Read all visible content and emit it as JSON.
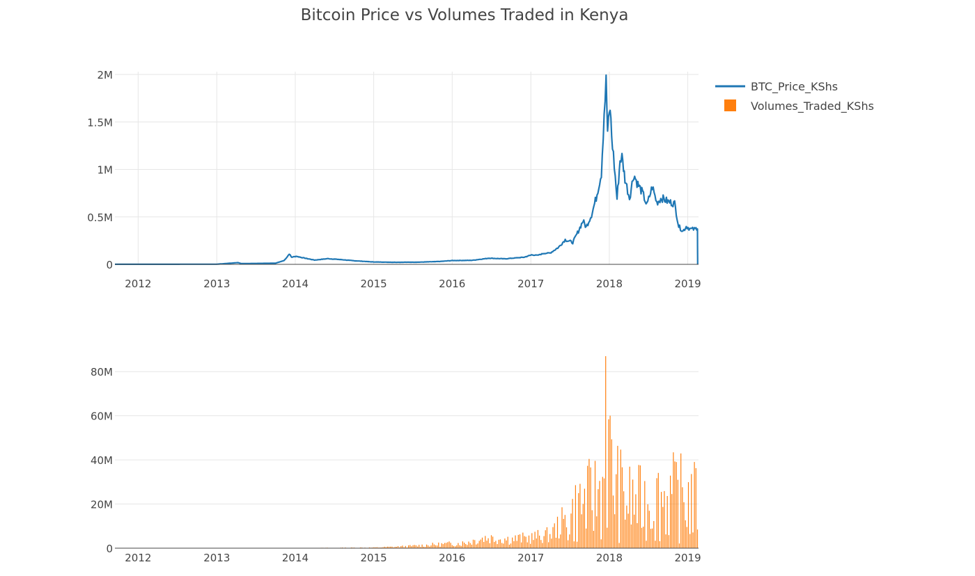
{
  "title": "Bitcoin Price vs Volumes Traded in Kenya",
  "legend": {
    "placement": "top-right",
    "items": [
      {
        "name": "BTC_Price_KShs",
        "symbol": "line",
        "color": "#1f77b4"
      },
      {
        "name": "Volumes_Traded_KShs",
        "symbol": "square",
        "color": "#ff7f0e"
      }
    ]
  },
  "chart_data": [
    {
      "type": "line",
      "title": "",
      "xlabel": "",
      "ylabel": "",
      "x_ticks": [
        "2012",
        "2013",
        "2014",
        "2015",
        "2016",
        "2017",
        "2018",
        "2019"
      ],
      "y_ticks": [
        "0",
        "0.5M",
        "1M",
        "1.5M",
        "2M"
      ],
      "xlim": [
        "2011-09-15",
        "2019-02-20"
      ],
      "ylim": [
        0,
        2000000
      ],
      "grid": true,
      "series": [
        {
          "name": "BTC_Price_KShs",
          "color": "#1f77b4",
          "points": [
            [
              "2011-09-15",
              500
            ],
            [
              "2012-06-01",
              1000
            ],
            [
              "2013-01-01",
              1500
            ],
            [
              "2013-04-10",
              18000
            ],
            [
              "2013-04-25",
              8000
            ],
            [
              "2013-06-01",
              9000
            ],
            [
              "2013-10-01",
              12000
            ],
            [
              "2013-11-10",
              40000
            ],
            [
              "2013-11-25",
              80000
            ],
            [
              "2013-12-04",
              110000
            ],
            [
              "2013-12-15",
              75000
            ],
            [
              "2014-01-05",
              85000
            ],
            [
              "2014-02-15",
              65000
            ],
            [
              "2014-04-01",
              45000
            ],
            [
              "2014-06-01",
              60000
            ],
            [
              "2014-08-01",
              50000
            ],
            [
              "2014-10-01",
              38000
            ],
            [
              "2015-01-01",
              25000
            ],
            [
              "2015-04-01",
              22000
            ],
            [
              "2015-08-01",
              23000
            ],
            [
              "2015-11-01",
              30000
            ],
            [
              "2016-01-01",
              40000
            ],
            [
              "2016-04-01",
              42000
            ],
            [
              "2016-06-20",
              65000
            ],
            [
              "2016-09-01",
              58000
            ],
            [
              "2016-12-01",
              75000
            ],
            [
              "2017-01-05",
              100000
            ],
            [
              "2017-02-01",
              95000
            ],
            [
              "2017-03-01",
              115000
            ],
            [
              "2017-04-01",
              120000
            ],
            [
              "2017-05-10",
              180000
            ],
            [
              "2017-06-10",
              260000
            ],
            [
              "2017-07-15",
              230000
            ],
            [
              "2017-08-10",
              350000
            ],
            [
              "2017-09-01",
              460000
            ],
            [
              "2017-09-15",
              390000
            ],
            [
              "2017-10-10",
              520000
            ],
            [
              "2017-11-01",
              700000
            ],
            [
              "2017-11-25",
              960000
            ],
            [
              "2017-12-08",
              1600000
            ],
            [
              "2017-12-17",
              1920000
            ],
            [
              "2017-12-24",
              1400000
            ],
            [
              "2018-01-05",
              1650000
            ],
            [
              "2018-01-12",
              1350000
            ],
            [
              "2018-01-20",
              1150000
            ],
            [
              "2018-02-06",
              690000
            ],
            [
              "2018-02-20",
              1100000
            ],
            [
              "2018-03-01",
              1130000
            ],
            [
              "2018-03-15",
              900000
            ],
            [
              "2018-04-05",
              700000
            ],
            [
              "2018-04-25",
              950000
            ],
            [
              "2018-05-10",
              860000
            ],
            [
              "2018-06-05",
              750000
            ],
            [
              "2018-06-25",
              620000
            ],
            [
              "2018-07-20",
              820000
            ],
            [
              "2018-08-10",
              650000
            ],
            [
              "2018-09-01",
              700000
            ],
            [
              "2018-10-01",
              660000
            ],
            [
              "2018-11-01",
              640000
            ],
            [
              "2018-11-20",
              400000
            ],
            [
              "2018-12-10",
              350000
            ],
            [
              "2018-12-25",
              400000
            ],
            [
              "2019-01-15",
              370000
            ],
            [
              "2019-02-05",
              370000
            ],
            [
              "2019-02-15",
              390000
            ],
            [
              "2019-02-16",
              0
            ]
          ]
        }
      ]
    },
    {
      "type": "bar",
      "title": "",
      "xlabel": "",
      "ylabel": "",
      "x_ticks": [
        "2012",
        "2013",
        "2014",
        "2015",
        "2016",
        "2017",
        "2018",
        "2019"
      ],
      "y_ticks": [
        "0",
        "20M",
        "40M",
        "60M",
        "80M"
      ],
      "xlim": [
        "2011-09-15",
        "2019-02-20"
      ],
      "ylim": [
        0,
        87000000
      ],
      "grid": true,
      "series": [
        {
          "name": "Volumes_Traded_KShs",
          "color": "#ff7f0e",
          "bar_interval_days": 7,
          "envelope": [
            [
              "2011-09-15",
              0
            ],
            [
              "2013-12-01",
              100000
            ],
            [
              "2014-06-01",
              200000
            ],
            [
              "2015-01-01",
              400000
            ],
            [
              "2015-06-01",
              1200000
            ],
            [
              "2015-11-01",
              2500000
            ],
            [
              "2016-03-01",
              3500000
            ],
            [
              "2016-06-01",
              7000000
            ],
            [
              "2016-10-01",
              6000000
            ],
            [
              "2017-01-01",
              7000000
            ],
            [
              "2017-04-01",
              9000000
            ],
            [
              "2017-06-01",
              18000000
            ],
            [
              "2017-08-15",
              35000000
            ],
            [
              "2017-10-15",
              40000000
            ],
            [
              "2017-12-01",
              50000000
            ],
            [
              "2017-12-20",
              85000000
            ],
            [
              "2018-01-10",
              60000000
            ],
            [
              "2018-02-15",
              45000000
            ],
            [
              "2018-04-01",
              38000000
            ],
            [
              "2018-06-01",
              36000000
            ],
            [
              "2018-08-01",
              40000000
            ],
            [
              "2018-10-01",
              42000000
            ],
            [
              "2018-12-01",
              41000000
            ],
            [
              "2019-02-20",
              38000000
            ]
          ],
          "peak": {
            "date": "2017-12-18",
            "value": 87000000
          }
        }
      ]
    }
  ]
}
